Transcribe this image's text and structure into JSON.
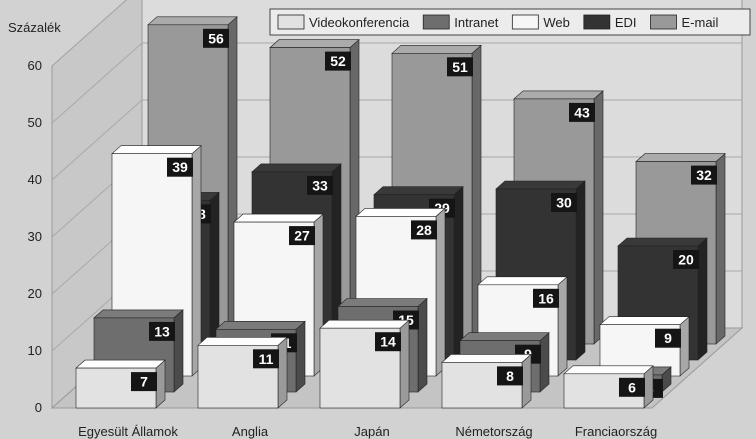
{
  "chart_data": {
    "type": "bar",
    "ylabel": "Százalék",
    "ylim": [
      0,
      60
    ],
    "yticks": [
      "0",
      "10",
      "20",
      "30",
      "40",
      "50",
      "60"
    ],
    "ytick_values": [
      0,
      10,
      20,
      30,
      40,
      50,
      60
    ],
    "categories": [
      "Egyesült Államok",
      "Anglia",
      "Japán",
      "Németország",
      "Franciaország"
    ],
    "series": [
      {
        "name": "Videokonferencia",
        "values": [
          7,
          11,
          14,
          8,
          6
        ]
      },
      {
        "name": "Intranet",
        "values": [
          13,
          11,
          15,
          9,
          3
        ]
      },
      {
        "name": "Web",
        "values": [
          39,
          27,
          28,
          16,
          9
        ]
      },
      {
        "name": "EDI",
        "values": [
          28,
          33,
          29,
          30,
          20
        ]
      },
      {
        "name": "E-mail",
        "values": [
          56,
          52,
          51,
          43,
          32
        ]
      }
    ],
    "colors": {
      "Videokonferencia": "#e2e2e2",
      "Intranet": "#6e6e6e",
      "Web": "#f6f6f6",
      "EDI": "#333333",
      "E-mail": "#999999"
    },
    "legend_position": "top-right",
    "grid": true,
    "layout": "3d-depth"
  }
}
